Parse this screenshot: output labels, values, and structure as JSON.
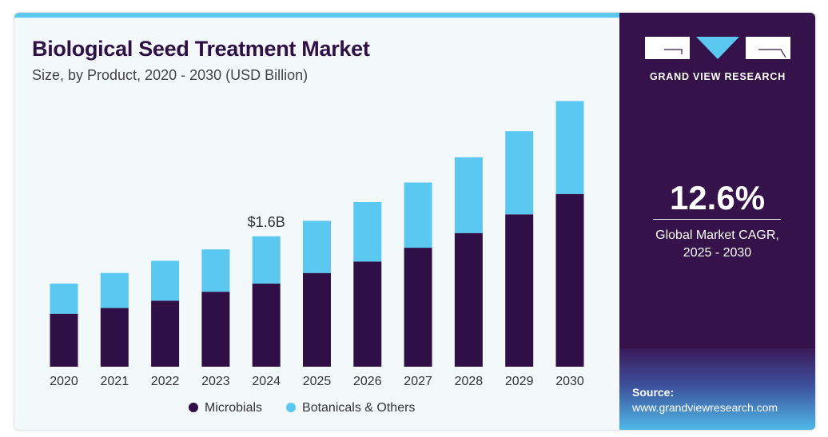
{
  "header": {
    "title": "Biological Seed Treatment Market",
    "subtitle": "Size, by Product, 2020 - 2030 (USD Billion)"
  },
  "brand": {
    "name": "GRAND VIEW RESEARCH"
  },
  "cagr": {
    "value": "12.6%",
    "label_line1": "Global Market CAGR,",
    "label_line2": "2025 - 2030"
  },
  "source": {
    "label": "Source:",
    "url": "www.grandviewresearch.com"
  },
  "colors": {
    "microbials": "#2f0f45",
    "botanicals": "#5bc8f2",
    "accent": "#5bc8f2",
    "panel": "#35134a"
  },
  "chart_data": {
    "type": "bar",
    "stacked": true,
    "title": "Biological Seed Treatment Market",
    "categories": [
      "2020",
      "2021",
      "2022",
      "2023",
      "2024",
      "2025",
      "2026",
      "2027",
      "2028",
      "2029",
      "2030"
    ],
    "series": [
      {
        "name": "Microbials",
        "values": [
          0.65,
          0.72,
          0.81,
          0.92,
          1.02,
          1.15,
          1.29,
          1.46,
          1.64,
          1.87,
          2.12
        ]
      },
      {
        "name": "Botanicals & Others",
        "values": [
          0.37,
          0.43,
          0.49,
          0.52,
          0.58,
          0.64,
          0.73,
          0.8,
          0.93,
          1.02,
          1.14
        ]
      }
    ],
    "annotations": [
      {
        "category": "2024",
        "text": "$1.6B"
      }
    ],
    "ylim": [
      0,
      3.5
    ],
    "grid": false,
    "legend": "bottom"
  }
}
